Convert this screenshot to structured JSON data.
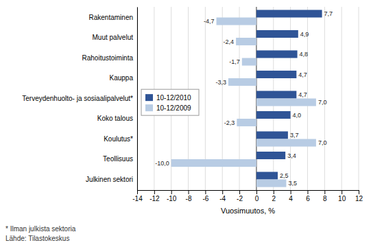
{
  "chart_data": {
    "type": "bar",
    "orientation": "horizontal",
    "categories": [
      "Rakentaminen",
      "Muut palvelut",
      "Rahoitustoiminta",
      "Kauppa",
      "Terveydenhuolto- ja sosiaalipalvelut*",
      "Koko talous",
      "Koulutus*",
      "Teollisuus",
      "Julkinen sektori"
    ],
    "series": [
      {
        "name": "10-12/2010",
        "color": "#2F5496",
        "values": [
          7.7,
          4.9,
          4.8,
          4.7,
          4.7,
          4.0,
          3.7,
          3.4,
          2.5
        ],
        "value_labels": [
          "7,7",
          "4,9",
          "4,8",
          "4,7",
          "4,7",
          "4,0",
          "3,7",
          "3,4",
          "2,5"
        ]
      },
      {
        "name": "10-12/2009",
        "color": "#B8CCE4",
        "values": [
          -4.7,
          -2.4,
          -1.7,
          -3.3,
          7.0,
          -2.3,
          7.0,
          -10.0,
          3.5
        ],
        "value_labels": [
          "-4,7",
          "-2,4",
          "-1,7",
          "-3,3",
          "7,0",
          "-2,3",
          "7,0",
          "-10,0",
          "3,5"
        ]
      }
    ],
    "xlabel": "Vuosimuutos, %",
    "xlim": [
      -14,
      12
    ],
    "xticks": [
      -14,
      -12,
      -10,
      -8,
      -6,
      -4,
      -2,
      0,
      2,
      4,
      6,
      8,
      10,
      12
    ],
    "grid": true,
    "legend": "left",
    "data_labels": true,
    "annotations": [
      "* Ilman julkista sektoria",
      "Lähde: Tilastokeskus"
    ]
  }
}
